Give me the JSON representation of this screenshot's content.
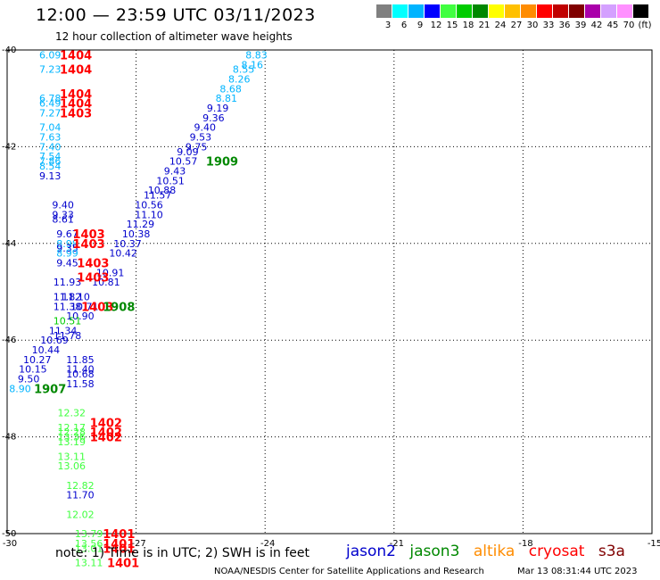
{
  "header": {
    "title": "12:00 — 23:59 UTC 03/11/2023",
    "subtitle": "12 hour collection of altimeter wave heights"
  },
  "scale": {
    "colors": [
      "#808080",
      "#00ffff",
      "#00b4ff",
      "#0000ff",
      "#40ff40",
      "#00cc00",
      "#008800",
      "#ffff00",
      "#ffc000",
      "#ff8c00",
      "#ff0000",
      "#c00000",
      "#800000",
      "#aa00aa",
      "#d4a0ff",
      "#ff90ff",
      "#000000"
    ],
    "labels": [
      "3",
      "6",
      "9",
      "12",
      "15",
      "18",
      "21",
      "24",
      "27",
      "30",
      "33",
      "36",
      "39",
      "42",
      "45",
      "70",
      "(ft)"
    ]
  },
  "footer": {
    "note": "note:  1) Time is in UTC; 2) SWH is in feet",
    "credit": "NOAA/NESDIS Center for Satellite Applications and Research",
    "timestamp": "Mar 13 08:31:44 UTC 2023"
  },
  "satellites": [
    {
      "name": "jason2",
      "color": "#0000cc"
    },
    {
      "name": "jason3",
      "color": "#008800"
    },
    {
      "name": "altika",
      "color": "#ff8c00"
    },
    {
      "name": "cryosat",
      "color": "#ff0000"
    },
    {
      "name": "s3a",
      "color": "#800000"
    }
  ],
  "chart_data": {
    "type": "scatter",
    "title": "12:00 — 23:59 UTC 03/11/2023",
    "subtitle": "12 hour collection of altimeter wave heights",
    "xlim": [
      -30,
      -15
    ],
    "ylim": [
      -50,
      -40
    ],
    "x_ticks": [
      -30,
      -27,
      -24,
      -21,
      -18,
      -15
    ],
    "y_ticks": [
      -40,
      -42,
      -44,
      -46,
      -48,
      -50
    ],
    "x_tick_labels": [
      "-30",
      "-27",
      "-24",
      "-21",
      "-18",
      "-15"
    ],
    "y_tick_labels": [
      "-40",
      "-42",
      "-44",
      "-46",
      "-48",
      "-50"
    ],
    "grid": true,
    "value_labels": [
      {
        "x": -29.0,
        "y": -40.1,
        "text": "6.09",
        "color": "#00b4ff"
      },
      {
        "x": -29.0,
        "y": -40.4,
        "text": "7.23",
        "color": "#00b4ff"
      },
      {
        "x": -29.0,
        "y": -41.0,
        "text": "6.78",
        "color": "#00b4ff"
      },
      {
        "x": -29.0,
        "y": -41.1,
        "text": "6.49",
        "color": "#00b4ff"
      },
      {
        "x": -29.0,
        "y": -41.3,
        "text": "7.27",
        "color": "#00b4ff"
      },
      {
        "x": -29.0,
        "y": -41.6,
        "text": "7.04",
        "color": "#00b4ff"
      },
      {
        "x": -29.0,
        "y": -41.8,
        "text": "7.63",
        "color": "#00b4ff"
      },
      {
        "x": -29.0,
        "y": -42.0,
        "text": "7.40",
        "color": "#00b4ff"
      },
      {
        "x": -29.0,
        "y": -42.2,
        "text": "7.54",
        "color": "#00b4ff"
      },
      {
        "x": -29.0,
        "y": -42.3,
        "text": "7.86",
        "color": "#00b4ff"
      },
      {
        "x": -29.0,
        "y": -42.4,
        "text": "8.54",
        "color": "#00b4ff"
      },
      {
        "x": -29.0,
        "y": -42.6,
        "text": "9.13",
        "color": "#0000cc"
      },
      {
        "x": -28.7,
        "y": -43.2,
        "text": "9.40",
        "color": "#0000cc"
      },
      {
        "x": -28.7,
        "y": -43.4,
        "text": "9.33",
        "color": "#0000cc"
      },
      {
        "x": -28.7,
        "y": -43.5,
        "text": "8.61",
        "color": "#0000cc"
      },
      {
        "x": -28.6,
        "y": -43.8,
        "text": "9.67",
        "color": "#0000cc"
      },
      {
        "x": -28.6,
        "y": -44.0,
        "text": "8.98",
        "color": "#00b4ff"
      },
      {
        "x": -28.6,
        "y": -44.1,
        "text": "9.35",
        "color": "#0000cc"
      },
      {
        "x": -28.6,
        "y": -44.2,
        "text": "8.99",
        "color": "#00b4ff"
      },
      {
        "x": -28.6,
        "y": -44.4,
        "text": "9.45",
        "color": "#0000cc"
      },
      {
        "x": -28.6,
        "y": -44.8,
        "text": "11.93",
        "color": "#0000cc"
      },
      {
        "x": -28.6,
        "y": -45.1,
        "text": "11.82",
        "color": "#0000cc"
      },
      {
        "x": -28.6,
        "y": -45.3,
        "text": "11.38",
        "color": "#0000cc"
      },
      {
        "x": -28.4,
        "y": -45.1,
        "text": "11.10",
        "color": "#0000cc"
      },
      {
        "x": -28.2,
        "y": -45.3,
        "text": "10.71",
        "color": "#0000cc"
      },
      {
        "x": -28.3,
        "y": -45.5,
        "text": "10.90",
        "color": "#0000cc"
      },
      {
        "x": -28.6,
        "y": -45.6,
        "text": "10.51",
        "color": "#00cc00"
      },
      {
        "x": -28.7,
        "y": -45.8,
        "text": "11.34",
        "color": "#0000cc"
      },
      {
        "x": -28.6,
        "y": -45.9,
        "text": "11.78",
        "color": "#0000cc"
      },
      {
        "x": -28.9,
        "y": -46.0,
        "text": "10.69",
        "color": "#0000cc"
      },
      {
        "x": -29.1,
        "y": -46.2,
        "text": "10.44",
        "color": "#0000cc"
      },
      {
        "x": -29.3,
        "y": -46.4,
        "text": "10.27",
        "color": "#0000cc"
      },
      {
        "x": -29.4,
        "y": -46.6,
        "text": "10.15",
        "color": "#0000cc"
      },
      {
        "x": -29.5,
        "y": -46.8,
        "text": "9.50",
        "color": "#0000cc"
      },
      {
        "x": -29.7,
        "y": -47.0,
        "text": "8.90",
        "color": "#00b4ff"
      },
      {
        "x": -28.3,
        "y": -46.4,
        "text": "11.85",
        "color": "#0000cc"
      },
      {
        "x": -28.3,
        "y": -46.6,
        "text": "11.40",
        "color": "#0000cc"
      },
      {
        "x": -28.3,
        "y": -46.7,
        "text": "10.68",
        "color": "#0000cc"
      },
      {
        "x": -28.3,
        "y": -46.9,
        "text": "11.58",
        "color": "#0000cc"
      },
      {
        "x": -28.5,
        "y": -47.5,
        "text": "12.32",
        "color": "#40ff40"
      },
      {
        "x": -28.5,
        "y": -47.8,
        "text": "12.17",
        "color": "#40ff40"
      },
      {
        "x": -28.5,
        "y": -47.9,
        "text": "12.28",
        "color": "#40ff40"
      },
      {
        "x": -28.5,
        "y": -48.0,
        "text": "13.36",
        "color": "#40ff40"
      },
      {
        "x": -28.5,
        "y": -48.1,
        "text": "13.19",
        "color": "#40ff40"
      },
      {
        "x": -28.5,
        "y": -48.4,
        "text": "13.11",
        "color": "#40ff40"
      },
      {
        "x": -28.5,
        "y": -48.6,
        "text": "13.06",
        "color": "#40ff40"
      },
      {
        "x": -28.3,
        "y": -49.0,
        "text": "12.82",
        "color": "#40ff40"
      },
      {
        "x": -28.3,
        "y": -49.2,
        "text": "11.70",
        "color": "#0000cc"
      },
      {
        "x": -28.3,
        "y": -49.6,
        "text": "12.02",
        "color": "#40ff40"
      },
      {
        "x": -28.1,
        "y": -50.0,
        "text": "13.79",
        "color": "#40ff40"
      },
      {
        "x": -28.1,
        "y": -50.2,
        "text": "13.56",
        "color": "#40ff40"
      },
      {
        "x": -28.1,
        "y": -50.3,
        "text": "13.01",
        "color": "#40ff40"
      },
      {
        "x": -28.1,
        "y": -50.6,
        "text": "13.11",
        "color": "#40ff40"
      },
      {
        "x": -24.2,
        "y": -40.1,
        "text": "8.83",
        "color": "#00b4ff"
      },
      {
        "x": -24.3,
        "y": -40.3,
        "text": "8.16",
        "color": "#00b4ff"
      },
      {
        "x": -24.5,
        "y": -40.4,
        "text": "8.55",
        "color": "#00b4ff"
      },
      {
        "x": -24.6,
        "y": -40.6,
        "text": "8.26",
        "color": "#00b4ff"
      },
      {
        "x": -24.8,
        "y": -40.8,
        "text": "8.68",
        "color": "#00b4ff"
      },
      {
        "x": -24.9,
        "y": -41.0,
        "text": "8.81",
        "color": "#00b4ff"
      },
      {
        "x": -25.1,
        "y": -41.2,
        "text": "9.19",
        "color": "#0000cc"
      },
      {
        "x": -25.2,
        "y": -41.4,
        "text": "9.36",
        "color": "#0000cc"
      },
      {
        "x": -25.4,
        "y": -41.6,
        "text": "9.40",
        "color": "#0000cc"
      },
      {
        "x": -25.5,
        "y": -41.8,
        "text": "9.53",
        "color": "#0000cc"
      },
      {
        "x": -25.6,
        "y": -42.0,
        "text": "9.75",
        "color": "#0000cc"
      },
      {
        "x": -25.8,
        "y": -42.1,
        "text": "9.09",
        "color": "#0000cc"
      },
      {
        "x": -25.9,
        "y": -42.3,
        "text": "10.57",
        "color": "#0000cc"
      },
      {
        "x": -26.1,
        "y": -42.5,
        "text": "9.43",
        "color": "#0000cc"
      },
      {
        "x": -26.2,
        "y": -42.7,
        "text": "10.51",
        "color": "#0000cc"
      },
      {
        "x": -26.4,
        "y": -42.9,
        "text": "10.88",
        "color": "#0000cc"
      },
      {
        "x": -26.5,
        "y": -43.0,
        "text": "11.57",
        "color": "#0000cc"
      },
      {
        "x": -26.7,
        "y": -43.2,
        "text": "10.56",
        "color": "#0000cc"
      },
      {
        "x": -26.7,
        "y": -43.4,
        "text": "11.10",
        "color": "#0000cc"
      },
      {
        "x": -26.9,
        "y": -43.6,
        "text": "11.29",
        "color": "#0000cc"
      },
      {
        "x": -27.0,
        "y": -43.8,
        "text": "10.38",
        "color": "#0000cc"
      },
      {
        "x": -27.2,
        "y": -44.0,
        "text": "10.37",
        "color": "#0000cc"
      },
      {
        "x": -27.3,
        "y": -44.2,
        "text": "10.42",
        "color": "#0000cc"
      },
      {
        "x": -27.6,
        "y": -44.6,
        "text": "10.91",
        "color": "#0000cc"
      },
      {
        "x": -27.7,
        "y": -44.8,
        "text": "10.81",
        "color": "#0000cc"
      }
    ],
    "pass_labels": [
      {
        "x": -28.4,
        "y": -40.1,
        "text": "1404",
        "color": "#ff0000"
      },
      {
        "x": -28.4,
        "y": -40.4,
        "text": "1404",
        "color": "#ff0000"
      },
      {
        "x": -28.4,
        "y": -40.9,
        "text": "1404",
        "color": "#ff0000"
      },
      {
        "x": -28.4,
        "y": -41.1,
        "text": "1404",
        "color": "#ff0000"
      },
      {
        "x": -28.4,
        "y": -41.3,
        "text": "1403",
        "color": "#ff0000"
      },
      {
        "x": -25.0,
        "y": -42.3,
        "text": "1909",
        "color": "#008800"
      },
      {
        "x": -28.1,
        "y": -43.8,
        "text": "1403",
        "color": "#ff0000"
      },
      {
        "x": -28.1,
        "y": -44.0,
        "text": "1403",
        "color": "#ff0000"
      },
      {
        "x": -28.0,
        "y": -44.4,
        "text": "1403",
        "color": "#ff0000"
      },
      {
        "x": -28.0,
        "y": -44.7,
        "text": "1403",
        "color": "#ff0000"
      },
      {
        "x": -27.9,
        "y": -45.3,
        "text": "1403",
        "color": "#ff0000"
      },
      {
        "x": -27.4,
        "y": -45.3,
        "text": "1908",
        "color": "#008800"
      },
      {
        "x": -29.0,
        "y": -47.0,
        "text": "1907",
        "color": "#008800"
      },
      {
        "x": -27.7,
        "y": -47.7,
        "text": "1402",
        "color": "#ff0000"
      },
      {
        "x": -27.7,
        "y": -47.9,
        "text": "1402",
        "color": "#ff0000"
      },
      {
        "x": -27.7,
        "y": -48.0,
        "text": "1402",
        "color": "#ff0000"
      },
      {
        "x": -27.4,
        "y": -50.0,
        "text": "1401",
        "color": "#ff0000"
      },
      {
        "x": -27.4,
        "y": -50.2,
        "text": "1401",
        "color": "#ff0000"
      },
      {
        "x": -27.4,
        "y": -50.3,
        "text": "1401",
        "color": "#ff0000"
      },
      {
        "x": -27.3,
        "y": -50.6,
        "text": "1401",
        "color": "#ff0000"
      }
    ]
  }
}
